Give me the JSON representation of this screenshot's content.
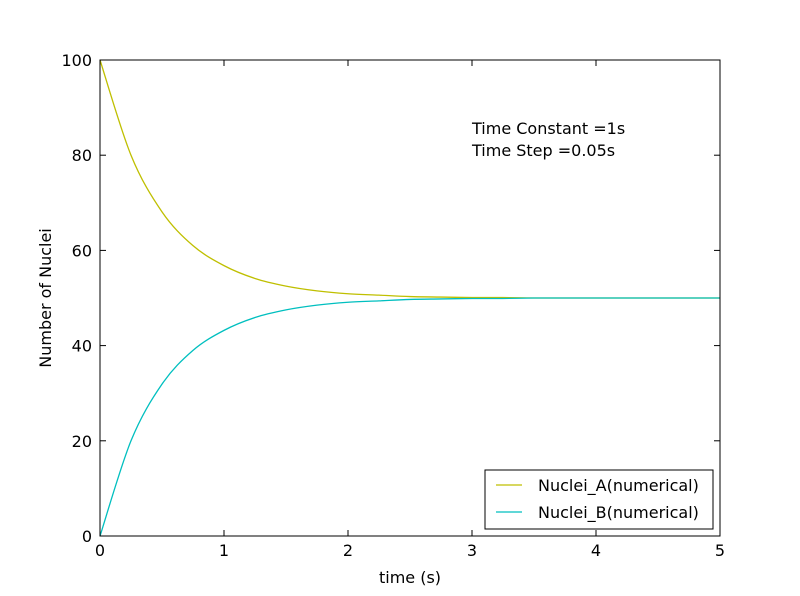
{
  "chart_data": {
    "type": "line",
    "xlabel": "time (s)",
    "ylabel": "Number of Nuclei",
    "xlim": [
      0,
      5
    ],
    "ylim": [
      0,
      100
    ],
    "xticks": [
      "0",
      "1",
      "2",
      "3",
      "4",
      "5"
    ],
    "yticks": [
      "0",
      "20",
      "40",
      "60",
      "80",
      "100"
    ],
    "grid": false,
    "legend_position": "lower-right",
    "annotations": [
      "Time Constant =1s",
      "Time Step =0.05s"
    ],
    "x": [
      0,
      0.25,
      0.5,
      0.75,
      1.0,
      1.25,
      1.5,
      1.75,
      2.0,
      2.25,
      2.5,
      2.75,
      3.0,
      3.25,
      3.5,
      3.75,
      4.0,
      4.25,
      4.5,
      4.75,
      5.0
    ],
    "series": [
      {
        "name": "Nuclei_A(numerical)",
        "color": "#bfbf00",
        "values": [
          100,
          80.0,
          68.1,
          61.0,
          56.8,
          54.1,
          52.5,
          51.5,
          50.9,
          50.6,
          50.3,
          50.2,
          50.1,
          50.1,
          50.0,
          50.0,
          50.0,
          50.0,
          50.0,
          50.0,
          50.0
        ]
      },
      {
        "name": "Nuclei_B(numerical)",
        "color": "#00bfbf",
        "values": [
          0,
          20.0,
          31.9,
          39.0,
          43.2,
          45.9,
          47.5,
          48.5,
          49.1,
          49.4,
          49.7,
          49.8,
          49.9,
          49.9,
          50.0,
          50.0,
          50.0,
          50.0,
          50.0,
          50.0,
          50.0
        ]
      }
    ]
  }
}
